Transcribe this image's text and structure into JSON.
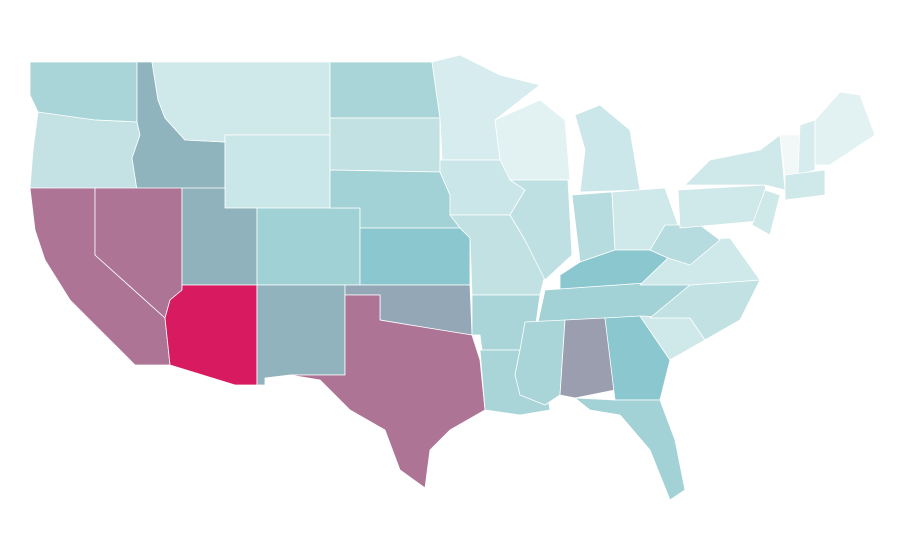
{
  "map": {
    "regions": [
      {
        "color": "#a9d5d8"
      },
      {
        "color": "#c4e2e4"
      },
      {
        "color": "#8fb4bd"
      },
      {
        "color": "#cfe8ea"
      },
      {
        "color": "#c9e6e8"
      },
      {
        "color": "#ad7496"
      },
      {
        "color": "#ad7496"
      },
      {
        "color": "#90b2bc"
      },
      {
        "color": "#d81b60"
      },
      {
        "color": "#9fd1d5"
      },
      {
        "color": "#91b3bd"
      },
      {
        "color": "#a9d5d8"
      },
      {
        "color": "#c2e1e3"
      },
      {
        "color": "#a2d2d6"
      },
      {
        "color": "#8ac7ce"
      },
      {
        "color": "#94a7b7"
      },
      {
        "color": "#ad7496"
      },
      {
        "color": "#d7ecee"
      },
      {
        "color": "#cae6e8"
      },
      {
        "color": "#c2e1e3"
      },
      {
        "color": "#a9d5d8"
      },
      {
        "color": "#a9d5d8"
      },
      {
        "color": "#e2f2f3"
      },
      {
        "color": "#bfe0e2"
      },
      {
        "color": "#cce7e9"
      },
      {
        "color": "#b7dcdf"
      },
      {
        "color": "#cfe8ea"
      },
      {
        "color": "#8ac7ce"
      },
      {
        "color": "#a2d2d6"
      },
      {
        "color": "#a9d5d8"
      },
      {
        "color": "#9a9eae"
      },
      {
        "color": "#8ac7ce"
      },
      {
        "color": "#a2d2d6"
      },
      {
        "color": "#cfe8ea"
      },
      {
        "color": "#c2e1e3"
      },
      {
        "color": "#cfe8ea"
      },
      {
        "color": "#b7dcdf"
      },
      {
        "color": "#cfe8ea"
      },
      {
        "color": "#cfe8ea"
      },
      {
        "color": "#cfe8ea"
      },
      {
        "color": "#f2f7f7"
      },
      {
        "color": "#d7ecee"
      },
      {
        "color": "#e2f2f3"
      },
      {
        "color": "#cfe8ea"
      }
    ]
  }
}
